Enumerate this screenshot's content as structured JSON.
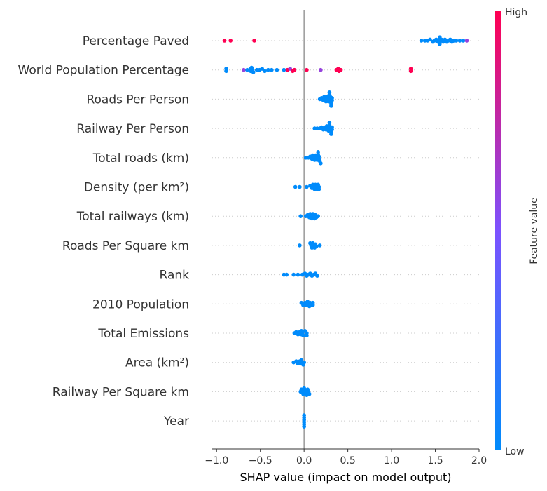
{
  "chart_data": {
    "type": "scatter",
    "subtype": "shap-beeswarm",
    "title": "",
    "xlabel": "SHAP value (impact on model output)",
    "xlim": [
      -1.05,
      2.0
    ],
    "xticks": [
      -1.0,
      -0.5,
      0.0,
      0.5,
      1.0,
      1.5,
      2.0
    ],
    "xtick_labels": [
      "−1.0",
      "−0.5",
      "0.0",
      "0.5",
      "1.0",
      "1.5",
      "2.0"
    ],
    "zero_line": true,
    "colorbar": {
      "label": "Feature value",
      "high": "High",
      "low": "Low",
      "low_color": "#008bfb",
      "high_color": "#ff0052"
    },
    "features": [
      {
        "name": "Percentage Paved",
        "points": [
          {
            "x": -0.91,
            "c": 1
          },
          {
            "x": -0.84,
            "c": 1
          },
          {
            "x": -0.57,
            "c": 1
          },
          {
            "x": 1.34,
            "c": 0
          },
          {
            "x": 1.38,
            "c": 0
          },
          {
            "x": 1.41,
            "c": 0
          },
          {
            "x": 1.44,
            "c": 0
          },
          {
            "x": 1.47,
            "c": 0
          },
          {
            "x": 1.49,
            "c": 0
          },
          {
            "x": 1.51,
            "c": 0
          },
          {
            "x": 1.53,
            "c": 0
          },
          {
            "x": 1.55,
            "c": 0
          },
          {
            "x": 1.55,
            "c": 0
          },
          {
            "x": 1.55,
            "c": 0
          },
          {
            "x": 1.55,
            "c": 0
          },
          {
            "x": 1.57,
            "c": 0
          },
          {
            "x": 1.59,
            "c": 0
          },
          {
            "x": 1.61,
            "c": 0
          },
          {
            "x": 1.63,
            "c": 0
          },
          {
            "x": 1.65,
            "c": 0
          },
          {
            "x": 1.67,
            "c": 0
          },
          {
            "x": 1.69,
            "c": 0
          },
          {
            "x": 1.71,
            "c": 0
          },
          {
            "x": 1.74,
            "c": 0
          },
          {
            "x": 1.78,
            "c": 0
          },
          {
            "x": 1.82,
            "c": 0
          },
          {
            "x": 1.86,
            "c": 0.6
          }
        ]
      },
      {
        "name": "World Population Percentage",
        "points": [
          {
            "x": -0.89,
            "c": 0
          },
          {
            "x": -0.89,
            "c": 0
          },
          {
            "x": -0.69,
            "c": 0.6
          },
          {
            "x": -0.65,
            "c": 0
          },
          {
            "x": -0.61,
            "c": 0
          },
          {
            "x": -0.61,
            "c": 0
          },
          {
            "x": -0.6,
            "c": 0
          },
          {
            "x": -0.59,
            "c": 0
          },
          {
            "x": -0.58,
            "c": 0
          },
          {
            "x": -0.54,
            "c": 0
          },
          {
            "x": -0.51,
            "c": 0
          },
          {
            "x": -0.48,
            "c": 0
          },
          {
            "x": -0.45,
            "c": 0
          },
          {
            "x": -0.41,
            "c": 0
          },
          {
            "x": -0.37,
            "c": 0
          },
          {
            "x": -0.31,
            "c": 0
          },
          {
            "x": -0.23,
            "c": 0
          },
          {
            "x": -0.19,
            "c": 1
          },
          {
            "x": -0.16,
            "c": 0.6
          },
          {
            "x": -0.13,
            "c": 1
          },
          {
            "x": -0.11,
            "c": 1
          },
          {
            "x": 0.03,
            "c": 1
          },
          {
            "x": 0.19,
            "c": 0.6
          },
          {
            "x": 0.37,
            "c": 1
          },
          {
            "x": 0.39,
            "c": 1
          },
          {
            "x": 0.4,
            "c": 1
          },
          {
            "x": 0.42,
            "c": 1
          },
          {
            "x": 1.22,
            "c": 1
          },
          {
            "x": 1.22,
            "c": 1
          }
        ]
      },
      {
        "name": "Roads Per Person",
        "points": [
          {
            "x": 0.18,
            "c": 0
          },
          {
            "x": 0.2,
            "c": 0
          },
          {
            "x": 0.22,
            "c": 0
          },
          {
            "x": 0.23,
            "c": 0
          },
          {
            "x": 0.24,
            "c": 0
          },
          {
            "x": 0.25,
            "c": 0
          },
          {
            "x": 0.26,
            "c": 0
          },
          {
            "x": 0.27,
            "c": 0
          },
          {
            "x": 0.28,
            "c": 0
          },
          {
            "x": 0.29,
            "c": 0
          },
          {
            "x": 0.29,
            "c": 0
          },
          {
            "x": 0.3,
            "c": 0
          },
          {
            "x": 0.3,
            "c": 0
          },
          {
            "x": 0.31,
            "c": 0
          },
          {
            "x": 0.31,
            "c": 0
          },
          {
            "x": 0.31,
            "c": 0
          },
          {
            "x": 0.32,
            "c": 0
          },
          {
            "x": 0.32,
            "c": 0
          }
        ]
      },
      {
        "name": "Railway Per Person",
        "points": [
          {
            "x": 0.12,
            "c": 0
          },
          {
            "x": 0.15,
            "c": 0
          },
          {
            "x": 0.18,
            "c": 0
          },
          {
            "x": 0.2,
            "c": 0
          },
          {
            "x": 0.22,
            "c": 0
          },
          {
            "x": 0.24,
            "c": 0
          },
          {
            "x": 0.25,
            "c": 0
          },
          {
            "x": 0.26,
            "c": 0
          },
          {
            "x": 0.27,
            "c": 0
          },
          {
            "x": 0.28,
            "c": 0
          },
          {
            "x": 0.29,
            "c": 0
          },
          {
            "x": 0.29,
            "c": 0
          },
          {
            "x": 0.3,
            "c": 0
          },
          {
            "x": 0.3,
            "c": 0
          },
          {
            "x": 0.31,
            "c": 0
          },
          {
            "x": 0.31,
            "c": 0
          },
          {
            "x": 0.32,
            "c": 0
          },
          {
            "x": 0.32,
            "c": 0
          }
        ]
      },
      {
        "name": "Total roads (km)",
        "points": [
          {
            "x": 0.02,
            "c": 0
          },
          {
            "x": 0.05,
            "c": 0
          },
          {
            "x": 0.07,
            "c": 0
          },
          {
            "x": 0.09,
            "c": 0
          },
          {
            "x": 0.1,
            "c": 0
          },
          {
            "x": 0.11,
            "c": 0
          },
          {
            "x": 0.12,
            "c": 0
          },
          {
            "x": 0.13,
            "c": 0
          },
          {
            "x": 0.14,
            "c": 0
          },
          {
            "x": 0.15,
            "c": 0
          },
          {
            "x": 0.16,
            "c": 0
          },
          {
            "x": 0.16,
            "c": 0
          },
          {
            "x": 0.17,
            "c": 0
          },
          {
            "x": 0.17,
            "c": 0
          },
          {
            "x": 0.18,
            "c": 0
          },
          {
            "x": 0.19,
            "c": 0
          }
        ]
      },
      {
        "name": "Density (per km²)",
        "points": [
          {
            "x": -0.1,
            "c": 0
          },
          {
            "x": -0.05,
            "c": 0
          },
          {
            "x": 0.03,
            "c": 0
          },
          {
            "x": 0.07,
            "c": 0
          },
          {
            "x": 0.09,
            "c": 0
          },
          {
            "x": 0.1,
            "c": 0
          },
          {
            "x": 0.11,
            "c": 0
          },
          {
            "x": 0.12,
            "c": 0
          },
          {
            "x": 0.13,
            "c": 0
          },
          {
            "x": 0.14,
            "c": 0
          },
          {
            "x": 0.15,
            "c": 0
          },
          {
            "x": 0.16,
            "c": 0
          },
          {
            "x": 0.17,
            "c": 0
          },
          {
            "x": 0.17,
            "c": 0
          }
        ]
      },
      {
        "name": "Total railways (km)",
        "points": [
          {
            "x": -0.04,
            "c": 0
          },
          {
            "x": 0.02,
            "c": 0
          },
          {
            "x": 0.04,
            "c": 0
          },
          {
            "x": 0.06,
            "c": 0
          },
          {
            "x": 0.07,
            "c": 0
          },
          {
            "x": 0.08,
            "c": 0
          },
          {
            "x": 0.09,
            "c": 0
          },
          {
            "x": 0.1,
            "c": 0
          },
          {
            "x": 0.11,
            "c": 0
          },
          {
            "x": 0.12,
            "c": 0
          },
          {
            "x": 0.13,
            "c": 0
          },
          {
            "x": 0.14,
            "c": 0
          },
          {
            "x": 0.16,
            "c": 0
          }
        ]
      },
      {
        "name": "Roads Per Square km",
        "points": [
          {
            "x": -0.05,
            "c": 0
          },
          {
            "x": 0.07,
            "c": 0
          },
          {
            "x": 0.08,
            "c": 0
          },
          {
            "x": 0.09,
            "c": 0
          },
          {
            "x": 0.1,
            "c": 0
          },
          {
            "x": 0.11,
            "c": 0
          },
          {
            "x": 0.12,
            "c": 0
          },
          {
            "x": 0.13,
            "c": 0
          },
          {
            "x": 0.14,
            "c": 0
          },
          {
            "x": 0.18,
            "c": 0
          }
        ]
      },
      {
        "name": "Rank",
        "points": [
          {
            "x": -0.23,
            "c": 0
          },
          {
            "x": -0.2,
            "c": 0
          },
          {
            "x": -0.12,
            "c": 0
          },
          {
            "x": -0.07,
            "c": 0
          },
          {
            "x": -0.02,
            "c": 0
          },
          {
            "x": 0.01,
            "c": 0
          },
          {
            "x": 0.03,
            "c": 0
          },
          {
            "x": 0.05,
            "c": 0
          },
          {
            "x": 0.07,
            "c": 0
          },
          {
            "x": 0.09,
            "c": 0
          },
          {
            "x": 0.11,
            "c": 0
          },
          {
            "x": 0.13,
            "c": 0
          },
          {
            "x": 0.15,
            "c": 0
          }
        ]
      },
      {
        "name": "2010 Population",
        "points": [
          {
            "x": -0.03,
            "c": 0
          },
          {
            "x": -0.01,
            "c": 0
          },
          {
            "x": 0.01,
            "c": 0
          },
          {
            "x": 0.03,
            "c": 0
          },
          {
            "x": 0.04,
            "c": 0
          },
          {
            "x": 0.05,
            "c": 0
          },
          {
            "x": 0.06,
            "c": 0
          },
          {
            "x": 0.07,
            "c": 0
          },
          {
            "x": 0.08,
            "c": 0
          },
          {
            "x": 0.1,
            "c": 0
          },
          {
            "x": 0.1,
            "c": 0
          }
        ]
      },
      {
        "name": "Total Emissions",
        "points": [
          {
            "x": -0.11,
            "c": 0
          },
          {
            "x": -0.09,
            "c": 0
          },
          {
            "x": -0.07,
            "c": 0
          },
          {
            "x": -0.05,
            "c": 0
          },
          {
            "x": -0.04,
            "c": 0
          },
          {
            "x": -0.03,
            "c": 0
          },
          {
            "x": -0.02,
            "c": 0
          },
          {
            "x": -0.01,
            "c": 0
          },
          {
            "x": 0.01,
            "c": 0
          },
          {
            "x": 0.03,
            "c": 0
          },
          {
            "x": 0.03,
            "c": 0
          }
        ]
      },
      {
        "name": "Area (km²)",
        "points": [
          {
            "x": -0.12,
            "c": 0
          },
          {
            "x": -0.09,
            "c": 0
          },
          {
            "x": -0.07,
            "c": 0
          },
          {
            "x": -0.05,
            "c": 0
          },
          {
            "x": -0.04,
            "c": 0
          },
          {
            "x": -0.03,
            "c": 0
          },
          {
            "x": -0.02,
            "c": 0
          },
          {
            "x": -0.01,
            "c": 0
          },
          {
            "x": 0.0,
            "c": 0
          }
        ]
      },
      {
        "name": "Railway Per Square km",
        "points": [
          {
            "x": -0.04,
            "c": 0
          },
          {
            "x": -0.03,
            "c": 0
          },
          {
            "x": -0.02,
            "c": 0
          },
          {
            "x": -0.01,
            "c": 0
          },
          {
            "x": 0.0,
            "c": 0
          },
          {
            "x": 0.01,
            "c": 0
          },
          {
            "x": 0.02,
            "c": 0
          },
          {
            "x": 0.03,
            "c": 0
          },
          {
            "x": 0.04,
            "c": 0
          },
          {
            "x": 0.05,
            "c": 0
          },
          {
            "x": 0.06,
            "c": 0
          }
        ]
      },
      {
        "name": "Year",
        "points": [
          {
            "x": 0.0,
            "c": 0
          },
          {
            "x": 0.0,
            "c": 0
          },
          {
            "x": 0.0,
            "c": 0
          },
          {
            "x": 0.0,
            "c": 0
          },
          {
            "x": 0.0,
            "c": 0
          },
          {
            "x": 0.0,
            "c": 0
          }
        ]
      }
    ]
  }
}
